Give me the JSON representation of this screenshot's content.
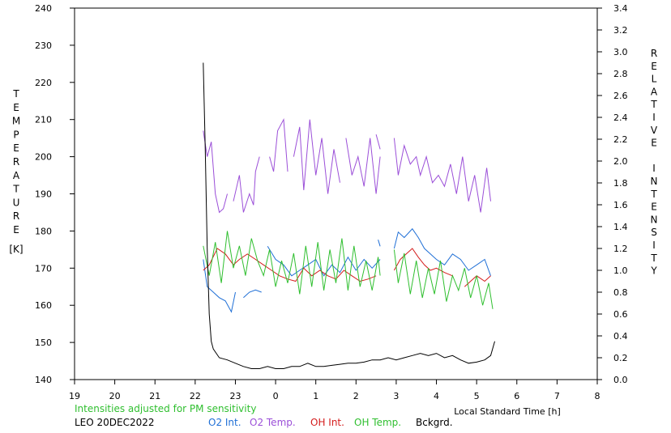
{
  "chart_data": {
    "type": "line",
    "title": "",
    "station_date": "LEO 20DEC2022",
    "note": "Intensities adjusted for PM sensitivity",
    "xlabel": "Local Standard Time [h]",
    "ylabel_left_letters": [
      "T",
      "E",
      "M",
      "P",
      "E",
      "R",
      "A",
      "T",
      "U",
      "R",
      "E"
    ],
    "ylabel_left_unit": "[K]",
    "ylabel_right_letters": [
      "R",
      "E",
      "L",
      "A",
      "T",
      "I",
      "V",
      "E",
      "",
      "I",
      "N",
      "T",
      "E",
      "N",
      "S",
      "I",
      "T",
      "Y"
    ],
    "x_axis": {
      "range": [
        19,
        32
      ],
      "ticks": [
        19,
        20,
        21,
        22,
        23,
        24,
        25,
        26,
        27,
        28,
        29,
        30,
        31,
        32
      ],
      "tick_labels": [
        "19",
        "20",
        "21",
        "22",
        "23",
        "0",
        "1",
        "2",
        "3",
        "4",
        "5",
        "6",
        "7",
        "8"
      ]
    },
    "y_left": {
      "range": [
        140,
        240
      ],
      "ticks": [
        140,
        150,
        160,
        170,
        180,
        190,
        200,
        210,
        220,
        230,
        240
      ]
    },
    "y_right": {
      "range": [
        0,
        3.4
      ],
      "ticks": [
        0.0,
        0.2,
        0.4,
        0.6,
        0.8,
        1.0,
        1.2,
        1.4,
        1.6,
        1.8,
        2.0,
        2.2,
        2.4,
        2.6,
        2.8,
        3.0,
        3.2,
        3.4
      ],
      "tick_labels": [
        "0.0",
        "0.2",
        "0.4",
        "0.6",
        "0.8",
        "1.0",
        "1.2",
        "1.4",
        "1.6",
        "1.8",
        "2.0",
        "2.2",
        "2.4",
        "2.6",
        "2.8",
        "3.0",
        "3.2",
        "3.4"
      ]
    },
    "legend_position": "bottom",
    "series": [
      {
        "name": "O2 Int.",
        "axis": "right",
        "color": "#1f6fd6",
        "segments": [
          [
            [
              22.2,
              1.1
            ],
            [
              22.3,
              0.85
            ],
            [
              22.45,
              0.8
            ],
            [
              22.6,
              0.75
            ],
            [
              22.75,
              0.72
            ],
            [
              22.9,
              0.62
            ],
            [
              23.0,
              0.8
            ]
          ],
          [
            [
              23.2,
              0.75
            ],
            [
              23.35,
              0.8
            ],
            [
              23.5,
              0.82
            ],
            [
              23.65,
              0.8
            ]
          ],
          [
            [
              23.8,
              1.22
            ],
            [
              24.0,
              1.1
            ],
            [
              24.2,
              1.05
            ],
            [
              24.4,
              0.95
            ],
            [
              24.6,
              1.0
            ],
            [
              24.8,
              1.05
            ],
            [
              25.0,
              1.1
            ],
            [
              25.2,
              0.95
            ],
            [
              25.4,
              1.05
            ],
            [
              25.6,
              0.98
            ],
            [
              25.8,
              1.12
            ],
            [
              26.0,
              1.0
            ],
            [
              26.2,
              1.1
            ],
            [
              26.4,
              1.02
            ],
            [
              26.6,
              1.1
            ]
          ],
          [
            [
              26.55,
              1.28
            ],
            [
              26.6,
              1.22
            ]
          ],
          [
            [
              26.95,
              1.2
            ],
            [
              27.05,
              1.35
            ],
            [
              27.2,
              1.3
            ],
            [
              27.4,
              1.38
            ],
            [
              27.55,
              1.3
            ],
            [
              27.7,
              1.2
            ],
            [
              27.85,
              1.15
            ],
            [
              28.0,
              1.1
            ],
            [
              28.2,
              1.05
            ],
            [
              28.4,
              1.15
            ],
            [
              28.6,
              1.1
            ],
            [
              28.8,
              1.0
            ],
            [
              29.0,
              1.05
            ],
            [
              29.2,
              1.1
            ],
            [
              29.35,
              0.95
            ]
          ]
        ]
      },
      {
        "name": "O2 Temp.",
        "axis": "left",
        "color": "#9b4fd8",
        "segments": [
          [
            [
              22.2,
              207
            ],
            [
              22.3,
              200
            ],
            [
              22.4,
              204
            ],
            [
              22.5,
              190
            ],
            [
              22.6,
              185
            ],
            [
              22.7,
              186
            ],
            [
              22.8,
              190
            ]
          ],
          [
            [
              22.95,
              188
            ],
            [
              23.1,
              195
            ],
            [
              23.2,
              185
            ],
            [
              23.35,
              190
            ],
            [
              23.45,
              187
            ],
            [
              23.5,
              196
            ],
            [
              23.6,
              200
            ]
          ],
          [
            [
              23.85,
              200
            ],
            [
              23.95,
              196
            ],
            [
              24.05,
              207
            ],
            [
              24.2,
              210
            ],
            [
              24.3,
              196
            ]
          ],
          [
            [
              24.45,
              200
            ],
            [
              24.6,
              208
            ],
            [
              24.7,
              191
            ],
            [
              24.85,
              210
            ],
            [
              25.0,
              195
            ],
            [
              25.15,
              205
            ],
            [
              25.3,
              190
            ],
            [
              25.45,
              202
            ],
            [
              25.6,
              193
            ]
          ],
          [
            [
              25.75,
              205
            ],
            [
              25.9,
              195
            ],
            [
              26.05,
              200
            ],
            [
              26.2,
              192
            ],
            [
              26.35,
              205
            ],
            [
              26.5,
              190
            ],
            [
              26.6,
              200
            ]
          ],
          [
            [
              26.5,
              206
            ],
            [
              26.6,
              202
            ]
          ],
          [
            [
              26.95,
              205
            ],
            [
              27.05,
              195
            ],
            [
              27.2,
              203
            ],
            [
              27.35,
              198
            ],
            [
              27.5,
              200
            ],
            [
              27.6,
              195
            ],
            [
              27.75,
              200
            ],
            [
              27.9,
              193
            ],
            [
              28.05,
              195
            ],
            [
              28.2,
              192
            ],
            [
              28.35,
              198
            ],
            [
              28.5,
              190
            ],
            [
              28.65,
              200
            ],
            [
              28.8,
              188
            ],
            [
              28.95,
              195
            ],
            [
              29.1,
              185
            ],
            [
              29.25,
              197
            ],
            [
              29.35,
              188
            ]
          ]
        ]
      },
      {
        "name": "OH Int.",
        "axis": "right",
        "color": "#d41c1c",
        "segments": [
          [
            [
              22.2,
              1.0
            ],
            [
              22.35,
              1.05
            ],
            [
              22.55,
              1.2
            ],
            [
              22.75,
              1.15
            ],
            [
              22.95,
              1.05
            ],
            [
              23.1,
              1.1
            ],
            [
              23.3,
              1.15
            ],
            [
              23.5,
              1.1
            ],
            [
              23.7,
              1.05
            ],
            [
              23.9,
              1.0
            ],
            [
              24.1,
              0.95
            ],
            [
              24.3,
              0.92
            ],
            [
              24.5,
              0.9
            ],
            [
              24.7,
              1.02
            ],
            [
              24.9,
              0.95
            ],
            [
              25.1,
              1.0
            ],
            [
              25.3,
              0.95
            ],
            [
              25.5,
              0.92
            ],
            [
              25.7,
              1.0
            ],
            [
              25.9,
              0.95
            ],
            [
              26.1,
              0.9
            ],
            [
              26.3,
              0.92
            ],
            [
              26.5,
              0.95
            ]
          ],
          [
            [
              26.95,
              1.0
            ],
            [
              27.1,
              1.1
            ],
            [
              27.25,
              1.15
            ],
            [
              27.4,
              1.2
            ],
            [
              27.55,
              1.12
            ],
            [
              27.7,
              1.05
            ],
            [
              27.85,
              1.0
            ],
            [
              28.0,
              1.02
            ],
            [
              28.2,
              0.98
            ],
            [
              28.4,
              0.95
            ]
          ],
          [
            [
              28.7,
              0.85
            ],
            [
              28.85,
              0.9
            ],
            [
              29.0,
              0.95
            ],
            [
              29.2,
              0.9
            ],
            [
              29.35,
              0.95
            ]
          ]
        ]
      },
      {
        "name": "OH Temp.",
        "axis": "left",
        "color": "#2fbf2f",
        "segments": [
          [
            [
              22.2,
              176
            ],
            [
              22.35,
              168
            ],
            [
              22.5,
              177
            ],
            [
              22.65,
              166
            ],
            [
              22.8,
              180
            ],
            [
              22.95,
              170
            ],
            [
              23.1,
              176
            ],
            [
              23.25,
              168
            ],
            [
              23.4,
              178
            ],
            [
              23.55,
              172
            ],
            [
              23.7,
              168
            ],
            [
              23.85,
              175
            ],
            [
              24.0,
              165
            ],
            [
              24.15,
              172
            ],
            [
              24.3,
              166
            ],
            [
              24.45,
              174
            ],
            [
              24.6,
              163
            ],
            [
              24.75,
              176
            ],
            [
              24.9,
              165
            ],
            [
              25.05,
              177
            ],
            [
              25.2,
              164
            ],
            [
              25.35,
              175
            ],
            [
              25.5,
              166
            ],
            [
              25.65,
              178
            ],
            [
              25.8,
              164
            ],
            [
              25.95,
              176
            ],
            [
              26.1,
              165
            ],
            [
              26.25,
              172
            ],
            [
              26.4,
              164
            ],
            [
              26.55,
              173
            ],
            [
              26.6,
              168
            ]
          ],
          [
            [
              26.95,
              175
            ],
            [
              27.05,
              166
            ],
            [
              27.2,
              174
            ],
            [
              27.35,
              163
            ],
            [
              27.5,
              172
            ],
            [
              27.65,
              162
            ],
            [
              27.8,
              170
            ],
            [
              27.95,
              163
            ],
            [
              28.1,
              172
            ],
            [
              28.25,
              161
            ],
            [
              28.4,
              168
            ],
            [
              28.55,
              164
            ],
            [
              28.7,
              170
            ],
            [
              28.85,
              162
            ],
            [
              29.0,
              168
            ],
            [
              29.15,
              160
            ],
            [
              29.3,
              166
            ],
            [
              29.4,
              159
            ]
          ]
        ]
      },
      {
        "name": "Bckgrd.",
        "axis": "right",
        "color": "#000000",
        "segments": [
          [
            [
              22.2,
              2.9
            ],
            [
              22.25,
              2.1
            ],
            [
              22.3,
              1.2
            ],
            [
              22.35,
              0.6
            ],
            [
              22.4,
              0.35
            ],
            [
              22.45,
              0.28
            ],
            [
              22.6,
              0.2
            ],
            [
              22.8,
              0.18
            ],
            [
              23.0,
              0.15
            ],
            [
              23.2,
              0.12
            ],
            [
              23.4,
              0.1
            ],
            [
              23.6,
              0.1
            ],
            [
              23.8,
              0.12
            ],
            [
              24.0,
              0.1
            ],
            [
              24.2,
              0.1
            ],
            [
              24.4,
              0.12
            ],
            [
              24.6,
              0.12
            ],
            [
              24.8,
              0.15
            ],
            [
              25.0,
              0.12
            ],
            [
              25.2,
              0.12
            ],
            [
              25.4,
              0.13
            ],
            [
              25.6,
              0.14
            ],
            [
              25.8,
              0.15
            ],
            [
              26.0,
              0.15
            ],
            [
              26.2,
              0.16
            ],
            [
              26.4,
              0.18
            ],
            [
              26.6,
              0.18
            ],
            [
              26.8,
              0.2
            ],
            [
              27.0,
              0.18
            ],
            [
              27.2,
              0.2
            ],
            [
              27.4,
              0.22
            ],
            [
              27.6,
              0.24
            ],
            [
              27.8,
              0.22
            ],
            [
              28.0,
              0.24
            ],
            [
              28.2,
              0.2
            ],
            [
              28.4,
              0.22
            ],
            [
              28.6,
              0.18
            ],
            [
              28.8,
              0.15
            ],
            [
              29.0,
              0.16
            ],
            [
              29.2,
              0.18
            ],
            [
              29.35,
              0.22
            ],
            [
              29.45,
              0.35
            ]
          ]
        ]
      }
    ]
  },
  "legend": {
    "label_station": "LEO 20DEC2022",
    "note_color": "#2fbf2f"
  }
}
